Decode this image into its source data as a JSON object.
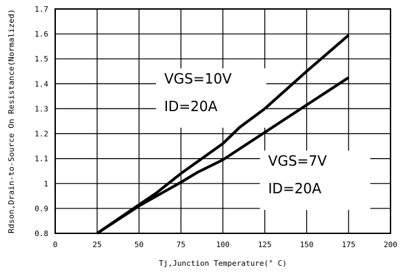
{
  "chart_data": {
    "type": "line",
    "title": "",
    "xlabel": "Tj,Junction Temperature(° C)",
    "ylabel": "Rdson,Drain-to-Source On Resistance(Normalized)",
    "xlim": [
      0,
      200
    ],
    "ylim": [
      0.8,
      1.7
    ],
    "x_ticks": [
      0,
      25,
      50,
      75,
      100,
      125,
      150,
      175,
      200
    ],
    "y_ticks": [
      0.8,
      0.9,
      1.0,
      1.1,
      1.2,
      1.3,
      1.4,
      1.5,
      1.6,
      1.7
    ],
    "x_tick_labels": [
      "0",
      "25",
      "50",
      "75",
      "100",
      "125",
      "150",
      "175",
      "200"
    ],
    "y_tick_labels": [
      "0.8",
      "0.9",
      "1",
      "1.1",
      "1.2",
      "1.3",
      "1.4",
      "1.5",
      "1.6",
      "1.7"
    ],
    "grid": true,
    "legend": "none",
    "series": [
      {
        "x": [
          25,
          50,
          60,
          75,
          100,
          110,
          125,
          150,
          175
        ],
        "y": [
          0.8,
          0.915,
          0.96,
          1.04,
          1.16,
          1.225,
          1.3,
          1.45,
          1.595
        ]
      },
      {
        "x": [
          25,
          50,
          75,
          85,
          100,
          125,
          150,
          175
        ],
        "y": [
          0.8,
          0.91,
          1.005,
          1.045,
          1.095,
          1.205,
          1.315,
          1.425
        ]
      }
    ],
    "annotations": [
      {
        "lines": [
          "VGS=10V",
          "ID=20A"
        ],
        "x": 93,
        "y": 1.39
      },
      {
        "lines": [
          "VGS=7V",
          "ID=20A"
        ],
        "x": 155,
        "y": 1.06
      }
    ],
    "colors": {
      "line": "#000000",
      "grid": "#000000",
      "background": "#ffffff"
    }
  }
}
